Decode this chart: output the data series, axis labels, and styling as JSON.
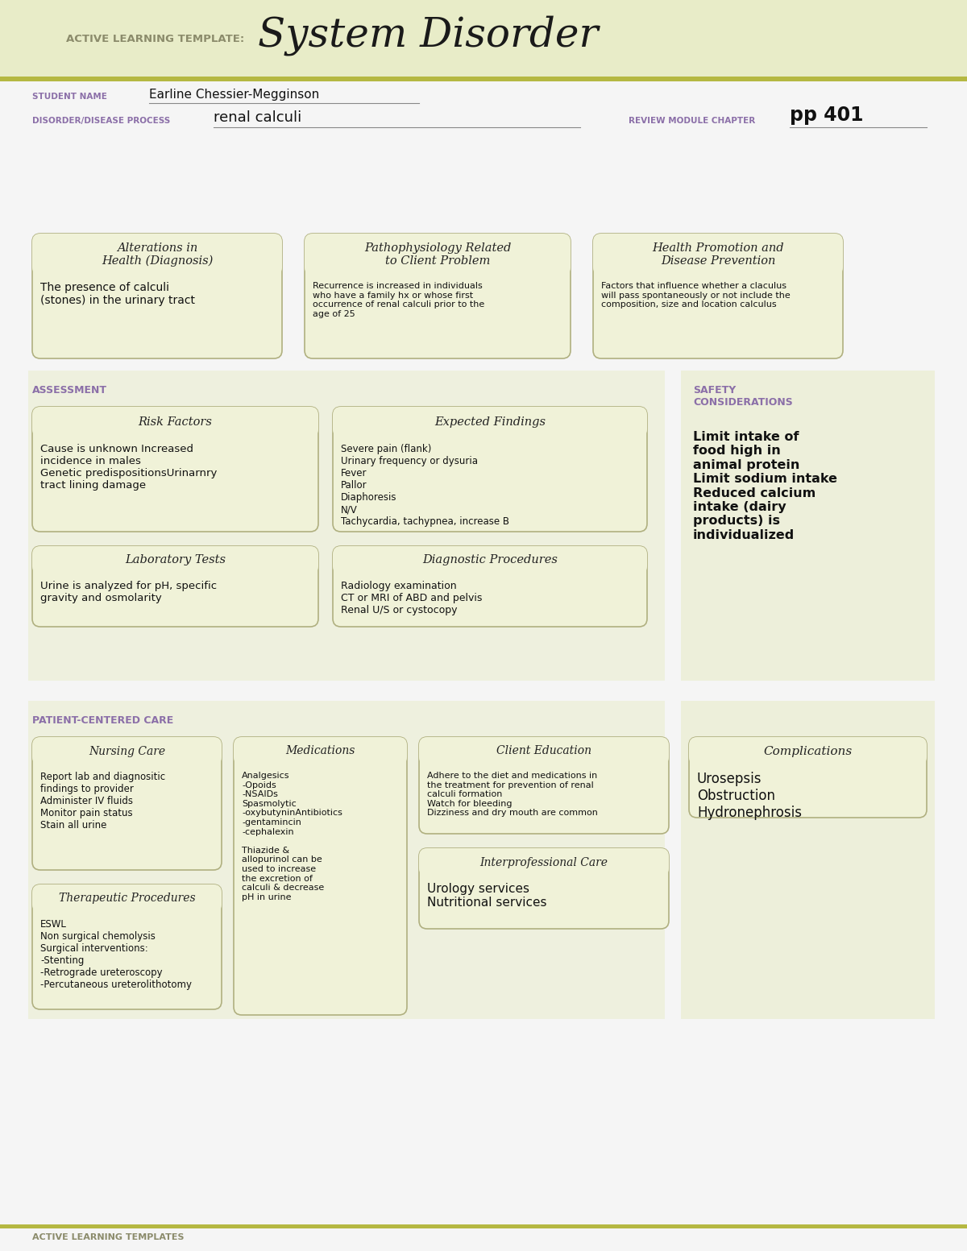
{
  "page_bg": "#f5f5f5",
  "header_bg": "#e8ecc8",
  "header_stripe_color": "#b5b842",
  "title_small": "ACTIVE LEARNING TEMPLATE:",
  "title_large": "System Disorder",
  "title_small_color": "#8b8b6b",
  "title_large_color": "#1a1a1a",
  "student_label": "STUDENT NAME",
  "student_name": "Earline Chessier-Megginson",
  "disorder_label": "DISORDER/DISEASE PROCESS",
  "disorder_name": "renal calculi",
  "chapter_label": "REVIEW MODULE CHAPTER",
  "chapter_value": "pp 401",
  "label_color": "#8b6fa8",
  "section_assessment_label": "ASSESSMENT",
  "section_patient_label": "PATIENT-CENTERED CARE",
  "section_label_color": "#8b6fa8",
  "safety_label": "SAFETY\nCONSIDERATIONS",
  "complications_label": "Complications",
  "box_bg": "#f0f2d8",
  "box_border": "#b0b080",
  "right_panel_bg": "#e8ecc8",
  "footer_text": "ACTIVE LEARNING TEMPLATES",
  "footer_color": "#8b8b6b",
  "boxes": {
    "alterations": {
      "title": "Alterations in\nHealth (Diagnosis)",
      "content": "The presence of calculi\n(stones) in the urinary tract"
    },
    "pathophysiology": {
      "title": "Pathophysiology Related\nto Client Problem",
      "content": "Recurrence is increased in individuals\nwho have a family hx or whose first\noccurrence of renal calculi prior to the\nage of 25"
    },
    "health_promotion": {
      "title": "Health Promotion and\nDisease Prevention",
      "content": "Factors that influence whether a claculus\nwill pass spontaneously or not include the\ncomposition, size and location calculus"
    },
    "risk_factors": {
      "title": "Risk Factors",
      "content": "Cause is unknown Increased\nincidence in males\nGenetic predispositionsUrinarnry\ntract lining damage"
    },
    "expected_findings": {
      "title": "Expected Findings",
      "content": "Severe pain (flank)\nUrinary frequency or dysuria\nFever\nPallor\nDiaphoresis\nN/V\nTachycardia, tachypnea, increase B"
    },
    "laboratory_tests": {
      "title": "Laboratory Tests",
      "content": "Urine is analyzed for pH, specific\ngravity and osmolarity"
    },
    "diagnostic_procedures": {
      "title": "Diagnostic Procedures",
      "content": "Radiology examination\nCT or MRI of ABD and pelvis\nRenal U/S or cystocopy"
    },
    "nursing_care": {
      "title": "Nursing Care",
      "content": "Report lab and diagnositic\nfindings to provider\nAdminister IV fluids\nMonitor pain status\nStain all urine"
    },
    "medications": {
      "title": "Medications",
      "content": "Analgesics\n-Opoids\n-NSAIDs\nSpasmolytic\n-oxybutyninAntibiotics\n-gentamincin\n-cephalexin\n\nThiazide &\nallopurinol can be\nused to increase\nthe excretion of\ncalculi & decrease\npH in urine"
    },
    "client_education": {
      "title": "Client Education",
      "content": "Adhere to the diet and medications in\nthe treatment for prevention of renal\ncalculi formation\nWatch for bleeding\nDizziness and dry mouth are common"
    },
    "therapeutic_procedures": {
      "title": "Therapeutic Procedures",
      "content": "ESWL\nNon surgical chemolysis\nSurgical interventions:\n-Stenting\n-Retrograde ureteroscopy\n-Percutaneous ureterolithotomy"
    },
    "interprofessional_care": {
      "title": "Interprofessional Care",
      "content": "Urology services\nNutritional services"
    }
  },
  "safety_content": "Limit intake of\nfood high in\nanimal protein\nLimit sodium intake\nReduced calcium\nintake (dairy\nproducts) is\nindividualized",
  "complications_content": "Urosepsis\nObstruction\nHydronephrosis"
}
